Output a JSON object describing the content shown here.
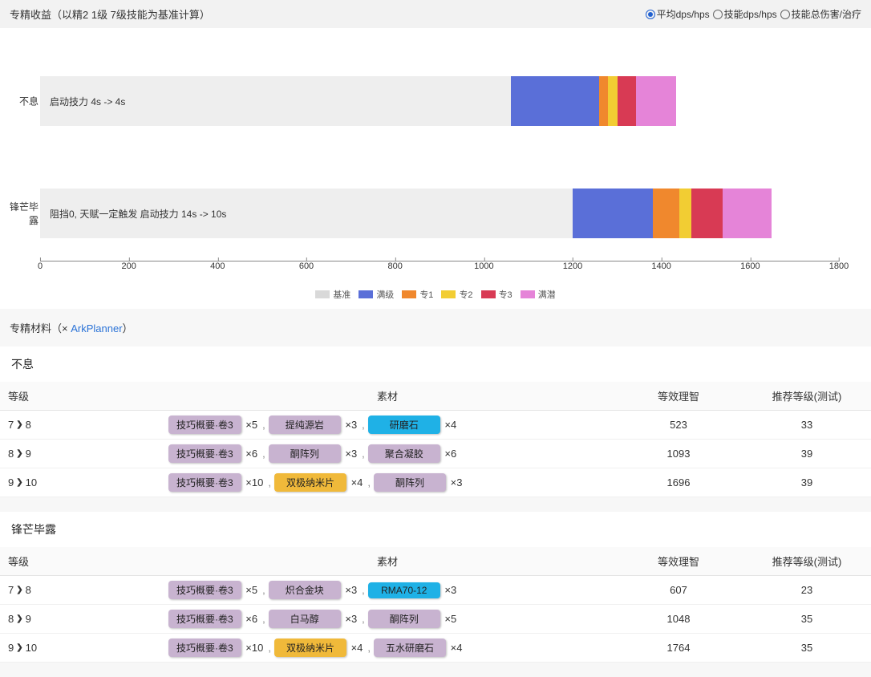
{
  "header": {
    "title": "专精收益（以精2 1级 7级技能为基准计算）",
    "radios": [
      {
        "label": "平均dps/hps",
        "checked": true
      },
      {
        "label": "技能dps/hps",
        "checked": false
      },
      {
        "label": "技能总伤害/治疗",
        "checked": false
      }
    ]
  },
  "chart": {
    "type": "stacked-horizontal-bar",
    "x_axis": {
      "min": 0,
      "max": 1800,
      "step": 200
    },
    "background": "#ffffff",
    "base_bar_color": "#eeeeee",
    "axis_color": "#888888",
    "text_color": "#333333",
    "series_colors": {
      "满级": "#5a6fd8",
      "专1": "#f0882d",
      "专2": "#f2cd33",
      "专3": "#d83a54",
      "满潜": "#e584d8"
    },
    "legend": [
      {
        "label": "基准",
        "color": "#d9d9d9"
      },
      {
        "label": "满级",
        "color": "#5a6fd8"
      },
      {
        "label": "专1",
        "color": "#f0882d"
      },
      {
        "label": "专2",
        "color": "#f2cd33"
      },
      {
        "label": "专3",
        "color": "#d83a54"
      },
      {
        "label": "满潜",
        "color": "#e584d8"
      }
    ],
    "rows": [
      {
        "name": "不息",
        "note": "启动技力 4s -> 4s",
        "base": 1060,
        "segments": [
          {
            "series": "满级",
            "value": 200
          },
          {
            "series": "专1",
            "value": 20
          },
          {
            "series": "专2",
            "value": 22
          },
          {
            "series": "专3",
            "value": 40
          },
          {
            "series": "满潜",
            "value": 92
          }
        ]
      },
      {
        "name": "锋芒毕露",
        "note": "阻挡0, 天赋一定触发 启动技力 14s -> 10s",
        "base": 1200,
        "segments": [
          {
            "series": "满级",
            "value": 180
          },
          {
            "series": "专1",
            "value": 60
          },
          {
            "series": "专2",
            "value": 28
          },
          {
            "series": "专3",
            "value": 70
          },
          {
            "series": "满潜",
            "value": 110
          }
        ]
      }
    ]
  },
  "materials": {
    "header_prefix": "专精材料（",
    "header_sep": "× ",
    "header_link": "ArkPlanner",
    "header_suffix": "）",
    "chip_colors": {
      "purple": "#c8b3d0",
      "blue": "#1fb1e6",
      "gold": "#f0b93a"
    },
    "columns": {
      "level": "等级",
      "mat": "素材",
      "sanity": "等效理智",
      "rec": "推荐等级(测试)"
    },
    "skills": [
      {
        "name": "不息",
        "rows": [
          {
            "from": "7",
            "to": "8",
            "mats": [
              {
                "name": "技巧概要·卷3",
                "color": "purple",
                "count": "×5"
              },
              {
                "name": "提纯源岩",
                "color": "purple",
                "count": "×3"
              },
              {
                "name": "研磨石",
                "color": "blue",
                "count": "×4"
              }
            ],
            "sanity": "523",
            "rec": "33"
          },
          {
            "from": "8",
            "to": "9",
            "mats": [
              {
                "name": "技巧概要·卷3",
                "color": "purple",
                "count": "×6"
              },
              {
                "name": "酮阵列",
                "color": "purple",
                "count": "×3"
              },
              {
                "name": "聚合凝胶",
                "color": "purple",
                "count": "×6"
              }
            ],
            "sanity": "1093",
            "rec": "39"
          },
          {
            "from": "9",
            "to": "10",
            "mats": [
              {
                "name": "技巧概要·卷3",
                "color": "purple",
                "count": "×10"
              },
              {
                "name": "双极纳米片",
                "color": "gold",
                "count": "×4"
              },
              {
                "name": "酮阵列",
                "color": "purple",
                "count": "×3"
              }
            ],
            "sanity": "1696",
            "rec": "39"
          }
        ]
      },
      {
        "name": "锋芒毕露",
        "rows": [
          {
            "from": "7",
            "to": "8",
            "mats": [
              {
                "name": "技巧概要·卷3",
                "color": "purple",
                "count": "×5"
              },
              {
                "name": "炽合金块",
                "color": "purple",
                "count": "×3"
              },
              {
                "name": "RMA70-12",
                "color": "blue",
                "count": "×3"
              }
            ],
            "sanity": "607",
            "rec": "23"
          },
          {
            "from": "8",
            "to": "9",
            "mats": [
              {
                "name": "技巧概要·卷3",
                "color": "purple",
                "count": "×6"
              },
              {
                "name": "白马醇",
                "color": "purple",
                "count": "×3"
              },
              {
                "name": "酮阵列",
                "color": "purple",
                "count": "×5"
              }
            ],
            "sanity": "1048",
            "rec": "35"
          },
          {
            "from": "9",
            "to": "10",
            "mats": [
              {
                "name": "技巧概要·卷3",
                "color": "purple",
                "count": "×10"
              },
              {
                "name": "双极纳米片",
                "color": "gold",
                "count": "×4"
              },
              {
                "name": "五水研磨石",
                "color": "purple",
                "count": "×4"
              }
            ],
            "sanity": "1764",
            "rec": "35"
          }
        ]
      }
    ]
  }
}
